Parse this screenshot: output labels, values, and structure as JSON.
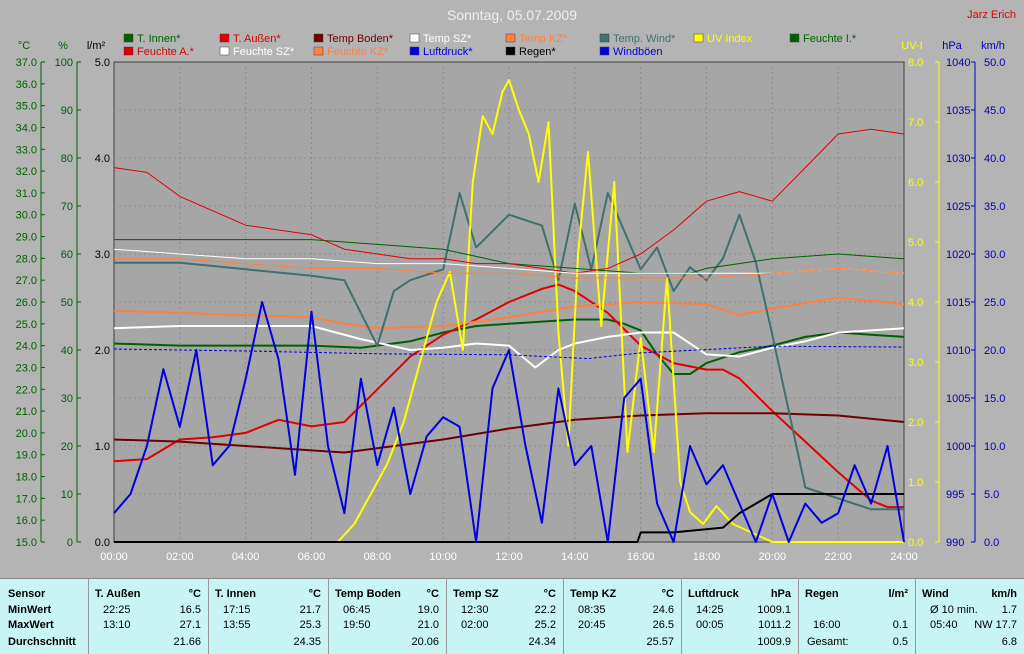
{
  "header": {
    "title": "Sonntag, 05.07.2009",
    "author": "Jarz Erich"
  },
  "colors": {
    "t_innen": "#006000",
    "t_aussen": "#e00000",
    "temp_boden": "#700000",
    "temp_sz": "#ffffff",
    "temp_kz": "#ff8040",
    "temp_wind": "#407070",
    "uv": "#ffff00",
    "feuchte_i": "#006000",
    "feuchte_a": "#e00000",
    "feuchte_sz": "#ffffff",
    "feuchte_kz": "#ff8040",
    "luftdruck": "#0000e0",
    "regen": "#000000",
    "windboeen": "#0000e0",
    "axis_green": "#006000",
    "axis_blue": "#0000c0",
    "axis_yellow": "#ffff00"
  },
  "legend": [
    {
      "label": "T. Innen*",
      "color": "#006000"
    },
    {
      "label": "T. Außen*",
      "color": "#e00000"
    },
    {
      "label": "Temp Boden*",
      "color": "#700000"
    },
    {
      "label": "Temp SZ*",
      "color": "#ffffff"
    },
    {
      "label": "Temp KZ*",
      "color": "#ff8040"
    },
    {
      "label": "Temp. Wind*",
      "color": "#407070"
    },
    {
      "label": "UV Index",
      "color": "#ffff00"
    },
    {
      "label": "Feuchte I.*",
      "color": "#006000"
    },
    {
      "label": "Feuchte A.*",
      "color": "#e00000"
    },
    {
      "label": "Feuchte SZ*",
      "color": "#ffffff"
    },
    {
      "label": "Feuchte KZ*",
      "color": "#ff8040"
    },
    {
      "label": "Luftdruck*",
      "color": "#0000e0"
    },
    {
      "label": "Regen*",
      "color": "#000000"
    },
    {
      "label": "Windböen",
      "color": "#0000e0"
    }
  ],
  "chart_data": {
    "type": "line",
    "x_ticks": [
      "00:00",
      "02:00",
      "04:00",
      "06:00",
      "08:00",
      "10:00",
      "12:00",
      "14:00",
      "16:00",
      "18:00",
      "20:00",
      "22:00",
      "24:00"
    ],
    "axes": {
      "temp": {
        "unit": "°C",
        "range": [
          15.0,
          37.0
        ],
        "ticks": [
          "37.0",
          "36.0",
          "35.0",
          "34.0",
          "33.0",
          "32.0",
          "31.0",
          "30.0",
          "29.0",
          "28.0",
          "27.0",
          "26.0",
          "25.0",
          "24.0",
          "23.0",
          "22.0",
          "21.0",
          "20.0",
          "19.0",
          "18.0",
          "17.0",
          "16.0",
          "15.0"
        ]
      },
      "humidity": {
        "unit": "%",
        "range": [
          0,
          100
        ],
        "ticks": [
          "100",
          "90",
          "80",
          "70",
          "60",
          "50",
          "40",
          "30",
          "20",
          "10",
          "0"
        ]
      },
      "rain": {
        "unit": "l/m²",
        "range": [
          0.0,
          5.0
        ],
        "ticks": [
          "5.0",
          "4.0",
          "3.0",
          "2.0",
          "1.0",
          "0.0"
        ]
      },
      "uv": {
        "unit": "UV-I",
        "range": [
          0.0,
          8.0
        ],
        "ticks": [
          "8.0",
          "7.0",
          "6.0",
          "5.0",
          "4.0",
          "3.0",
          "2.0",
          "1.0",
          "0.0"
        ]
      },
      "pressure": {
        "unit": "hPa",
        "range": [
          990,
          1040
        ],
        "ticks": [
          "1040",
          "1035",
          "1030",
          "1025",
          "1020",
          "1015",
          "1010",
          "1005",
          "1000",
          "995",
          "990"
        ]
      },
      "wind": {
        "unit": "km/h",
        "range": [
          0.0,
          50.0
        ],
        "ticks": [
          "50.0",
          "45.0",
          "40.0",
          "35.0",
          "30.0",
          "25.0",
          "20.0",
          "15.0",
          "10.0",
          "5.0",
          "0.0"
        ]
      }
    },
    "series": [
      {
        "name": "T. Innen*",
        "axis": "temp",
        "color": "#006000",
        "x": [
          0,
          2,
          4,
          6,
          7.5,
          9,
          10,
          11,
          12,
          13,
          14,
          15,
          15.5,
          16,
          16.5,
          17,
          17.5,
          18,
          19,
          20,
          21,
          22,
          23,
          24
        ],
        "y": [
          24.1,
          24.0,
          24.0,
          24.0,
          23.9,
          24.2,
          24.6,
          24.9,
          25.0,
          25.1,
          25.2,
          25.2,
          25.0,
          24.7,
          23.6,
          22.7,
          22.7,
          23.2,
          23.7,
          24.0,
          24.4,
          24.6,
          24.5,
          24.4
        ]
      },
      {
        "name": "T. Außen*",
        "axis": "temp",
        "color": "#e00000",
        "x": [
          0,
          1,
          2,
          3,
          4,
          5,
          6,
          7,
          8,
          9,
          10,
          11,
          12,
          13,
          13.5,
          14,
          15,
          16,
          17,
          18,
          18.5,
          19,
          20,
          21,
          22,
          23,
          23.5,
          24
        ],
        "y": [
          18.7,
          18.8,
          19.7,
          19.8,
          20.0,
          20.6,
          20.3,
          20.5,
          22.0,
          23.5,
          24.5,
          25.2,
          26.0,
          26.6,
          26.8,
          26.5,
          25.5,
          24.0,
          23.2,
          22.9,
          22.9,
          22.5,
          21.0,
          19.6,
          18.2,
          16.9,
          16.6,
          16.6
        ]
      },
      {
        "name": "Temp Boden*",
        "axis": "temp",
        "color": "#700000",
        "x": [
          0,
          2,
          4,
          6,
          7,
          8,
          10,
          12,
          14,
          16,
          18,
          20,
          22,
          24
        ],
        "y": [
          19.7,
          19.6,
          19.4,
          19.2,
          19.1,
          19.3,
          19.7,
          20.2,
          20.6,
          20.8,
          20.9,
          20.9,
          20.8,
          20.5
        ]
      },
      {
        "name": "Temp SZ*",
        "axis": "temp",
        "color": "#ffffff",
        "x": [
          0,
          2,
          4,
          6,
          7.5,
          9,
          10,
          11,
          12,
          12.8,
          13.5,
          14,
          15,
          16,
          17,
          18,
          19,
          20,
          21,
          22,
          23,
          24
        ],
        "y": [
          24.8,
          24.9,
          24.9,
          24.9,
          24.3,
          23.8,
          23.9,
          24.1,
          24.0,
          23.0,
          23.8,
          24.1,
          24.4,
          24.6,
          24.6,
          23.6,
          23.5,
          23.9,
          24.2,
          24.6,
          24.7,
          24.8
        ]
      },
      {
        "name": "Temp KZ*",
        "axis": "temp",
        "color": "#ff8040",
        "x": [
          0,
          2,
          4,
          6,
          7,
          8,
          10,
          12,
          14,
          16,
          18,
          19,
          20,
          22,
          24
        ],
        "y": [
          25.6,
          25.5,
          25.4,
          25.3,
          25.0,
          24.8,
          24.9,
          25.3,
          25.8,
          26.0,
          25.9,
          25.4,
          25.7,
          26.2,
          25.9
        ]
      },
      {
        "name": "Temp. Wind*",
        "axis": "temp",
        "color": "#407070",
        "x": [
          0,
          2,
          4,
          6,
          7,
          8,
          8.5,
          9,
          10,
          10.5,
          11,
          12,
          13,
          13.5,
          14,
          14.5,
          15,
          16,
          16.5,
          17,
          17.5,
          18,
          18.5,
          19,
          19.5,
          20,
          21,
          22,
          23,
          24
        ],
        "y": [
          27.8,
          27.8,
          27.5,
          27.2,
          27.0,
          24.0,
          26.5,
          27.0,
          27.5,
          31.0,
          28.5,
          30.0,
          29.5,
          27.0,
          30.5,
          27.5,
          31.0,
          27.5,
          28.5,
          26.5,
          27.6,
          27.0,
          28.0,
          30.0,
          27.8,
          24.5,
          17.5,
          17.0,
          16.5,
          16.5
        ]
      },
      {
        "name": "UV Index",
        "axis": "uv",
        "color": "#ffff00",
        "x": [
          0,
          6.8,
          7.3,
          7.8,
          8.3,
          8.8,
          9.3,
          9.8,
          10.2,
          10.6,
          10.9,
          11.2,
          11.5,
          11.8,
          12.0,
          12.3,
          12.6,
          12.9,
          13.2,
          13.5,
          13.8,
          14.1,
          14.4,
          14.8,
          15.2,
          15.6,
          16.0,
          16.4,
          16.8,
          17.2,
          17.5,
          17.9,
          18.3,
          18.8,
          19.2,
          19.6,
          20.0,
          24.0
        ],
        "y": [
          0.0,
          0.0,
          0.3,
          0.8,
          1.3,
          2.0,
          3.0,
          4.0,
          4.5,
          3.2,
          6.0,
          7.1,
          6.8,
          7.5,
          7.7,
          7.2,
          6.8,
          6.0,
          7.0,
          3.5,
          1.6,
          4.8,
          6.5,
          3.6,
          6.0,
          1.5,
          3.4,
          1.5,
          4.4,
          1.0,
          0.5,
          0.3,
          0.6,
          0.3,
          0.2,
          0.1,
          0.0,
          0.0
        ]
      },
      {
        "name": "Feuchte I.*",
        "axis": "humidity",
        "color": "#006000",
        "x": [
          0,
          2,
          4,
          6,
          8,
          10,
          12,
          14,
          16,
          17,
          17.5,
          18,
          20,
          22,
          24
        ],
        "y": [
          63,
          63,
          63,
          63,
          62,
          61,
          58,
          57,
          56,
          56,
          56,
          57,
          59,
          60,
          59
        ]
      },
      {
        "name": "Feuchte A.*",
        "axis": "humidity",
        "color": "#e00000",
        "x": [
          0,
          1,
          2,
          3,
          4,
          5,
          6,
          7,
          8,
          9,
          10,
          11,
          12,
          13,
          14,
          15,
          16,
          17,
          18,
          19,
          20,
          21,
          22,
          23,
          24
        ],
        "y": [
          78,
          77,
          72,
          69,
          66,
          65,
          64,
          61,
          60,
          59,
          59,
          58,
          58,
          57,
          56,
          57,
          60,
          65,
          71,
          73,
          71,
          78,
          85,
          86,
          85
        ]
      },
      {
        "name": "Feuchte SZ*",
        "axis": "humidity",
        "color": "#ffffff",
        "x": [
          0,
          2,
          4,
          6,
          8,
          10,
          12,
          14,
          16,
          18,
          20,
          22,
          24
        ],
        "y": [
          61,
          60,
          59,
          59,
          58,
          58,
          57,
          56,
          56,
          56,
          56,
          57,
          56
        ]
      },
      {
        "name": "Feuchte KZ*",
        "axis": "humidity",
        "color": "#ff8040",
        "x": [
          0,
          2,
          4,
          6,
          8,
          10,
          12,
          14,
          16,
          18,
          20,
          22,
          24
        ],
        "y": [
          59,
          59,
          58,
          57,
          57,
          56,
          56,
          55,
          55,
          55,
          56,
          57,
          56
        ]
      },
      {
        "name": "Luftdruck*",
        "axis": "pressure",
        "color": "#0000e0",
        "x": [
          0,
          4,
          8,
          12,
          14.4,
          16,
          20,
          24
        ],
        "y": [
          1010.1,
          1009.9,
          1009.6,
          1009.5,
          1009.1,
          1009.7,
          1010.4,
          1010.3
        ]
      },
      {
        "name": "Regen*",
        "axis": "rain",
        "color": "#000000",
        "x": [
          0,
          15.9,
          16.0,
          17.0,
          18.5,
          19.0,
          19.5,
          20.0,
          24.0
        ],
        "y": [
          0.0,
          0.0,
          0.1,
          0.1,
          0.15,
          0.3,
          0.4,
          0.5,
          0.5
        ]
      },
      {
        "name": "Windböen",
        "axis": "wind",
        "color": "#0000e0",
        "x": [
          0,
          0.5,
          1.0,
          1.5,
          2.0,
          2.5,
          3.0,
          3.5,
          4.0,
          4.5,
          5.0,
          5.5,
          6.0,
          6.5,
          7.0,
          7.5,
          8.0,
          8.5,
          9.0,
          9.5,
          10.0,
          10.5,
          11.0,
          11.5,
          12.0,
          12.5,
          13.0,
          13.5,
          14.0,
          14.5,
          15.0,
          15.5,
          16.0,
          16.5,
          17.0,
          17.5,
          18.0,
          18.5,
          19.0,
          19.5,
          20.0,
          20.5,
          21.0,
          21.5,
          22.0,
          22.5,
          23.0,
          23.5,
          24.0
        ],
        "y": [
          3,
          5,
          10,
          18,
          12,
          20,
          8,
          10,
          17,
          25,
          19,
          7,
          24,
          10,
          3,
          17,
          8,
          14,
          5,
          11,
          13,
          12,
          0,
          16,
          20,
          10,
          2,
          16,
          8,
          10,
          0,
          15,
          17,
          4,
          0,
          10,
          6,
          8,
          4,
          0,
          5,
          0,
          4,
          2,
          3,
          8,
          4,
          10,
          0
        ]
      }
    ]
  },
  "stats": {
    "row_labels": {
      "sensor": "Sensor",
      "min": "MinWert",
      "max": "MaxWert",
      "avg": "Durchschnitt"
    },
    "columns": [
      {
        "name": "T. Außen",
        "unit": "°C",
        "min_time": "22:25",
        "min_val": "16.5",
        "max_time": "13:10",
        "max_val": "27.1",
        "avg": "21.66"
      },
      {
        "name": "T. Innen",
        "unit": "°C",
        "min_time": "17:15",
        "min_val": "21.7",
        "max_time": "13:55",
        "max_val": "25.3",
        "avg": "24.35"
      },
      {
        "name": "Temp Boden",
        "unit": "°C",
        "min_time": "06:45",
        "min_val": "19.0",
        "max_time": "19:50",
        "max_val": "21.0",
        "avg": "20.06"
      },
      {
        "name": "Temp SZ",
        "unit": "°C",
        "min_time": "12:30",
        "min_val": "22.2",
        "max_time": "02:00",
        "max_val": "25.2",
        "avg": "24.34"
      },
      {
        "name": "Temp KZ",
        "unit": "°C",
        "min_time": "08:35",
        "min_val": "24.6",
        "max_time": "20:45",
        "max_val": "26.5",
        "avg": "25.57"
      },
      {
        "name": "Luftdruck",
        "unit": "hPa",
        "min_time": "14:25",
        "min_val": "1009.1",
        "max_time": "00:05",
        "max_val": "1011.2",
        "avg": "1009.9"
      },
      {
        "name": "Regen",
        "unit": "l/m²",
        "min_time": "",
        "min_val": "",
        "max_time": "16:00",
        "max_val": "0.1",
        "avg_label": "Gesamt:",
        "avg": "0.5"
      },
      {
        "name": "Wind",
        "unit": "km/h",
        "min_time": "Ø 10 min.",
        "min_val": "1.7",
        "max_time": "05:40",
        "max_val": "NW 17.7",
        "avg": "6.8"
      }
    ]
  }
}
